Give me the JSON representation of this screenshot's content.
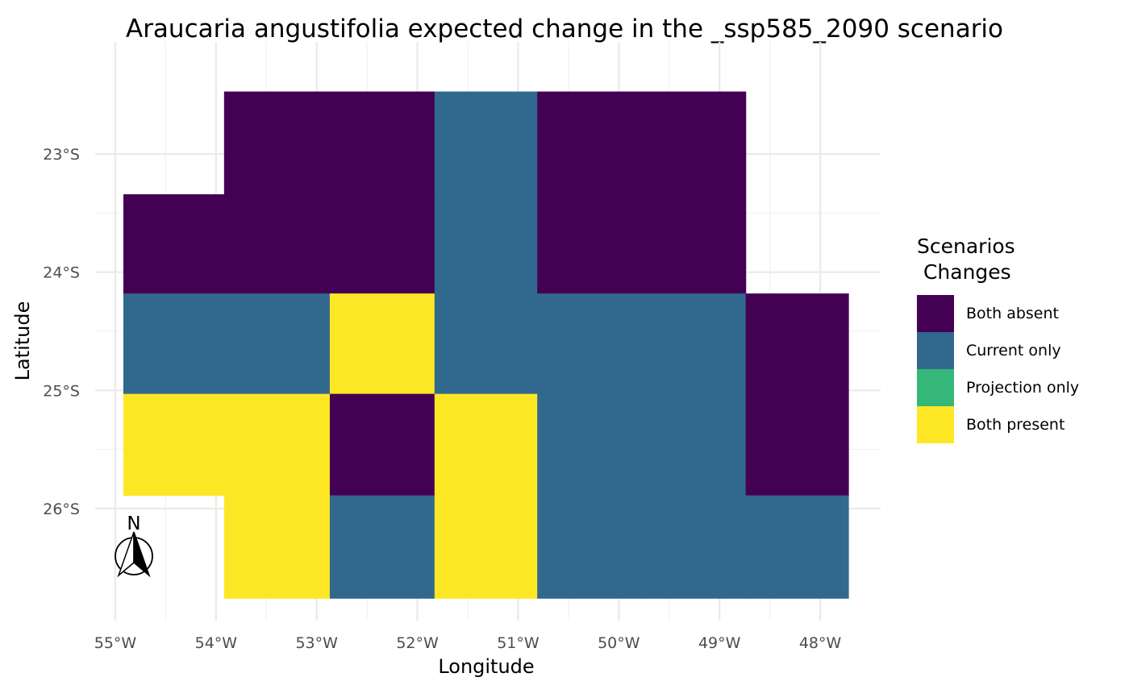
{
  "title": "Araucaria angustifolia expected change in the _ssp585_2090 scenario",
  "north_arrow_label": "N",
  "legend": {
    "title": "Scenarios\n Changes",
    "items": [
      {
        "label": "Both absent",
        "color": "#440154"
      },
      {
        "label": "Current only",
        "color": "#31688E"
      },
      {
        "label": "Projection only",
        "color": "#35B779"
      },
      {
        "label": "Both present",
        "color": "#FDE725"
      }
    ]
  },
  "chart_data": {
    "type": "heatmap",
    "title": "Araucaria angustifolia expected change in the _ssp585_2090 scenario",
    "xlabel": "Longitude",
    "ylabel": "Latitude",
    "x_ticks": [
      {
        "value": -55,
        "label": "55°W"
      },
      {
        "value": -54,
        "label": "54°W"
      },
      {
        "value": -53,
        "label": "53°W"
      },
      {
        "value": -52,
        "label": "52°W"
      },
      {
        "value": -51,
        "label": "51°W"
      },
      {
        "value": -50,
        "label": "50°W"
      },
      {
        "value": -49,
        "label": "49°W"
      },
      {
        "value": -48,
        "label": "48°W"
      }
    ],
    "y_ticks": [
      {
        "value": -23,
        "label": "23°S"
      },
      {
        "value": -24,
        "label": "24°S"
      },
      {
        "value": -25,
        "label": "25°S"
      },
      {
        "value": -26,
        "label": "26°S"
      }
    ],
    "xlim": [
      -55.2,
      -47.4
    ],
    "ylim": [
      -26.95,
      -22.05
    ],
    "cell_lon_edges": [
      -54.92,
      -53.92,
      -52.87,
      -51.83,
      -50.81,
      -49.78,
      -48.74,
      -47.72
    ],
    "cell_lat_edges": [
      -22.47,
      -23.34,
      -24.18,
      -25.03,
      -25.89,
      -26.76
    ],
    "categories": [
      "Both absent",
      "Current only",
      "Projection only",
      "Both present"
    ],
    "grid": [
      [
        null,
        0,
        0,
        1,
        0,
        0,
        null
      ],
      [
        0,
        0,
        0,
        1,
        0,
        0,
        null
      ],
      [
        1,
        1,
        3,
        1,
        1,
        1,
        0
      ],
      [
        3,
        3,
        0,
        3,
        1,
        1,
        0
      ],
      [
        null,
        3,
        1,
        3,
        1,
        1,
        1
      ]
    ]
  }
}
